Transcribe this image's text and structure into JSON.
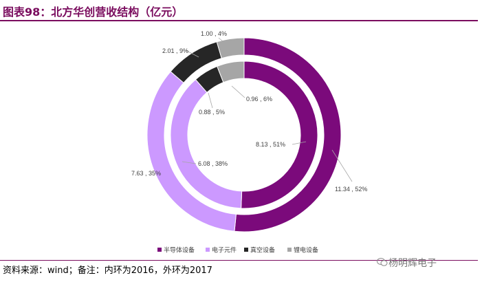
{
  "title": "图表98：北方华创营收结构（亿元）",
  "source_note": "资料来源：wind；备注：内环为2016，外环为2017",
  "watermark": "杨明辉电子",
  "colors": {
    "title": "#7a0c5e",
    "semiconductor": "#7b0a7b",
    "electronic_components": "#cc99ff",
    "vacuum": "#262626",
    "lithium": "#a6a6a6"
  },
  "chart_data": {
    "type": "pie",
    "title": "",
    "legend_placement": "bottom",
    "categories": [
      "半导体设备",
      "电子元件",
      "真空设备",
      "锂电设备"
    ],
    "series": [
      {
        "ring": "outer",
        "values": [
          11.34,
          7.63,
          2.01,
          1.0
        ],
        "percents": [
          52,
          35,
          9,
          4
        ],
        "labels": [
          "11.34 , 52%",
          "7.63 , 35%",
          "2.01 , 9%",
          "1.00 , 4%"
        ]
      },
      {
        "ring": "inner",
        "values": [
          8.13,
          6.08,
          0.88,
          0.96
        ],
        "percents": [
          51,
          38,
          5,
          6
        ],
        "labels": [
          "8.13 , 51%",
          "6.08 , 38%",
          "0.88 , 5%",
          "0.96 , 6%"
        ]
      }
    ]
  }
}
